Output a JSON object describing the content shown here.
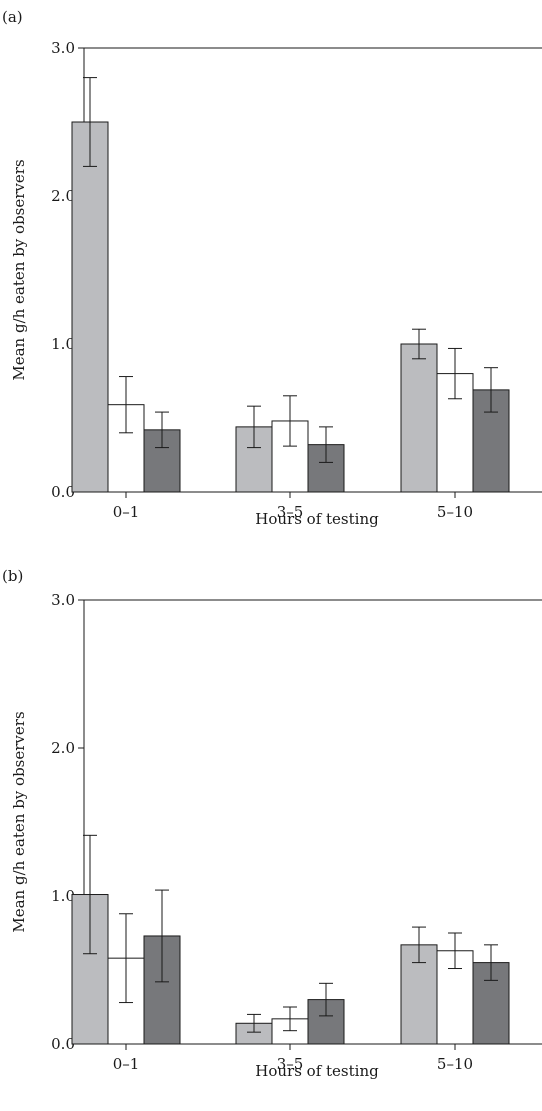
{
  "colors": {
    "series_1": "#bbbcbf",
    "series_2": "#ffffff",
    "series_3": "#77787b",
    "axis": "#1a1a1a"
  },
  "chart_data": [
    {
      "type": "bar",
      "panel_label": "(a)",
      "title": "",
      "xlabel": "Hours of testing",
      "ylabel": "Mean g/h eaten by observers",
      "categories": [
        "0–1",
        "3–5",
        "5–10"
      ],
      "ylim": [
        0,
        3
      ],
      "yticks": [
        "0.0",
        "1.0",
        "2.0",
        "3.0"
      ],
      "grid": false,
      "legend": "none",
      "series": [
        {
          "values": [
            2.5,
            0.44,
            1.0
          ],
          "errors": [
            0.3,
            0.14,
            0.1
          ]
        },
        {
          "values": [
            0.59,
            0.48,
            0.8
          ],
          "errors": [
            0.19,
            0.17,
            0.17
          ]
        },
        {
          "values": [
            0.42,
            0.32,
            0.69
          ],
          "errors": [
            0.12,
            0.12,
            0.15
          ]
        }
      ]
    },
    {
      "type": "bar",
      "panel_label": "(b)",
      "title": "",
      "xlabel": "Hours of testing",
      "ylabel": "Mean g/h eaten by observers",
      "categories": [
        "0–1",
        "3–5",
        "5–10"
      ],
      "ylim": [
        0,
        3
      ],
      "yticks": [
        "0.0",
        "1.0",
        "2.0",
        "3.0"
      ],
      "grid": false,
      "legend": "none",
      "series": [
        {
          "values": [
            1.01,
            0.14,
            0.67
          ],
          "errors": [
            0.4,
            0.06,
            0.12
          ]
        },
        {
          "values": [
            0.58,
            0.17,
            0.63
          ],
          "errors": [
            0.3,
            0.08,
            0.12
          ]
        },
        {
          "values": [
            0.73,
            0.3,
            0.55
          ],
          "errors": [
            0.31,
            0.11,
            0.12
          ]
        }
      ]
    }
  ]
}
